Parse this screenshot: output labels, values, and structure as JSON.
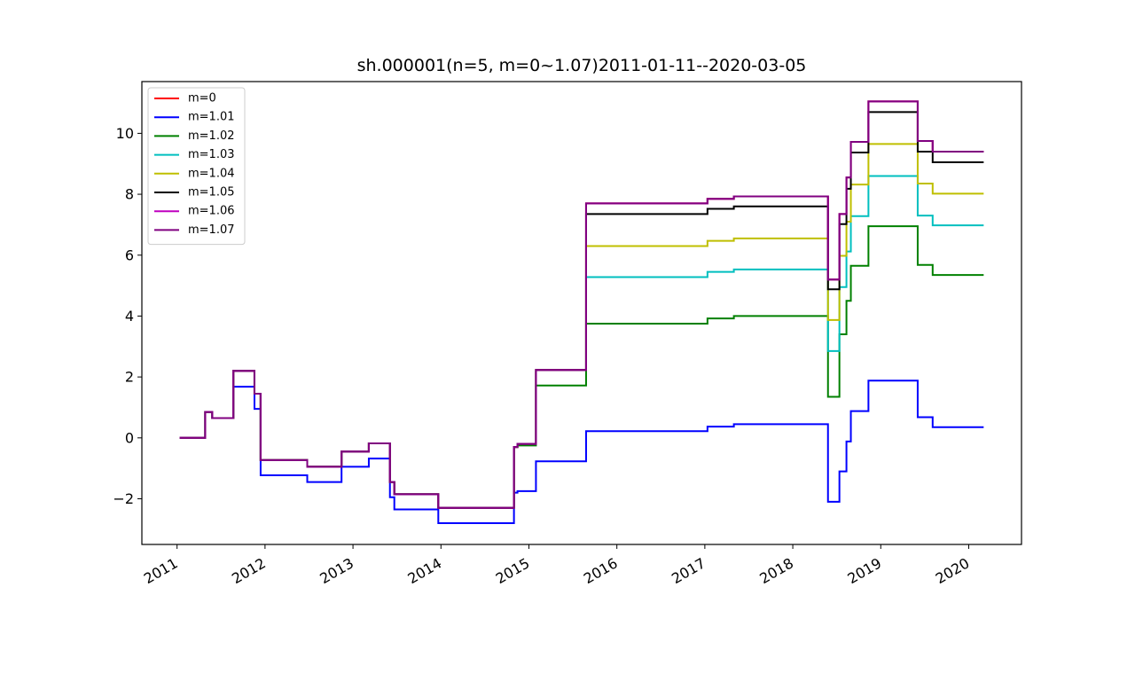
{
  "chart_data": {
    "type": "line",
    "title": "sh.000001(n=5, m=0~1.07)2011-01-11--2020-03-05",
    "xlabel": "",
    "ylabel": "",
    "xlim": [
      2010.6,
      2020.6
    ],
    "ylim": [
      -3.5,
      11.7
    ],
    "x_ticks": [
      2011,
      2012,
      2013,
      2014,
      2015,
      2016,
      2017,
      2018,
      2019,
      2020
    ],
    "x_tick_labels": [
      "2011",
      "2012",
      "2013",
      "2014",
      "2015",
      "2016",
      "2017",
      "2018",
      "2019",
      "2020"
    ],
    "y_ticks": [
      -2,
      0,
      2,
      4,
      6,
      8,
      10
    ],
    "y_tick_labels": [
      "−2",
      "0",
      "2",
      "4",
      "6",
      "8",
      "10"
    ],
    "grid": false,
    "legend_position": "upper-left",
    "steps": [
      {
        "x": 2011.03,
        "values": [
          0,
          0,
          0,
          0,
          0,
          0,
          0,
          0
        ]
      },
      {
        "x": 2011.32,
        "values": [
          0.85,
          0.85,
          0.85,
          0.85,
          0.85,
          0.85,
          0.85,
          0.85
        ]
      },
      {
        "x": 2011.4,
        "values": [
          0.65,
          0.65,
          0.65,
          0.65,
          0.65,
          0.65,
          0.65,
          0.65
        ]
      },
      {
        "x": 2011.64,
        "values": [
          2.2,
          1.68,
          2.2,
          2.2,
          2.2,
          2.2,
          2.2,
          2.2
        ]
      },
      {
        "x": 2011.88,
        "values": [
          1.45,
          0.95,
          1.45,
          1.45,
          1.45,
          1.45,
          1.45,
          1.45
        ]
      },
      {
        "x": 2011.95,
        "values": [
          -0.73,
          -1.23,
          -0.73,
          -0.73,
          -0.73,
          -0.73,
          -0.73,
          -0.73
        ]
      },
      {
        "x": 2012.48,
        "values": [
          -0.95,
          -1.45,
          -0.95,
          -0.95,
          -0.95,
          -0.95,
          -0.95,
          -0.95
        ]
      },
      {
        "x": 2012.87,
        "values": [
          -0.45,
          -0.95,
          -0.45,
          -0.45,
          -0.45,
          -0.45,
          -0.45,
          -0.45
        ]
      },
      {
        "x": 2013.18,
        "values": [
          -0.18,
          -0.68,
          -0.18,
          -0.18,
          -0.18,
          -0.18,
          -0.18,
          -0.18
        ]
      },
      {
        "x": 2013.42,
        "values": [
          -1.45,
          -1.95,
          -1.45,
          -1.45,
          -1.45,
          -1.45,
          -1.45,
          -1.45
        ]
      },
      {
        "x": 2013.47,
        "values": [
          -1.85,
          -2.35,
          -1.85,
          -1.85,
          -1.85,
          -1.85,
          -1.85,
          -1.85
        ]
      },
      {
        "x": 2013.97,
        "values": [
          -2.3,
          -2.8,
          -2.3,
          -2.3,
          -2.3,
          -2.3,
          -2.3,
          -2.3
        ]
      },
      {
        "x": 2014.83,
        "values": [
          -0.3,
          -1.8,
          -0.3,
          -0.3,
          -0.3,
          -0.3,
          -0.3,
          -0.3
        ]
      },
      {
        "x": 2014.87,
        "values": [
          -0.2,
          -1.75,
          -0.25,
          -0.2,
          -0.2,
          -0.2,
          -0.2,
          -0.2
        ]
      },
      {
        "x": 2015.08,
        "values": [
          2.23,
          -0.77,
          1.72,
          2.23,
          2.23,
          2.23,
          2.23,
          2.23
        ]
      },
      {
        "x": 2015.65,
        "values": [
          7.7,
          0.22,
          3.75,
          5.28,
          6.3,
          7.35,
          7.7,
          7.7
        ]
      },
      {
        "x": 2017.03,
        "values": [
          7.85,
          0.37,
          3.92,
          5.45,
          6.47,
          7.52,
          7.85,
          7.85
        ]
      },
      {
        "x": 2017.33,
        "values": [
          7.93,
          0.45,
          4.0,
          5.53,
          6.55,
          7.6,
          7.93,
          7.93
        ]
      },
      {
        "x": 2018.4,
        "values": [
          5.2,
          -2.1,
          1.35,
          2.85,
          3.87,
          4.88,
          5.2,
          5.2
        ]
      },
      {
        "x": 2018.53,
        "values": [
          7.35,
          -1.1,
          3.4,
          4.95,
          5.98,
          7.02,
          7.35,
          7.35
        ]
      },
      {
        "x": 2018.61,
        "values": [
          8.55,
          -0.12,
          4.5,
          6.12,
          7.1,
          8.18,
          8.55,
          8.55
        ]
      },
      {
        "x": 2018.66,
        "values": [
          9.72,
          0.88,
          5.65,
          7.28,
          8.32,
          9.37,
          9.72,
          9.72
        ]
      },
      {
        "x": 2018.86,
        "values": [
          11.05,
          1.88,
          6.95,
          8.6,
          9.65,
          10.7,
          11.05,
          11.05
        ]
      },
      {
        "x": 2019.42,
        "values": [
          9.75,
          0.68,
          5.68,
          7.3,
          8.35,
          9.4,
          9.75,
          9.75
        ]
      },
      {
        "x": 2019.59,
        "values": [
          9.4,
          0.35,
          5.35,
          6.98,
          8.02,
          9.05,
          9.4,
          9.4
        ]
      },
      {
        "x": 2020.17,
        "values": [
          9.4,
          0.35,
          5.35,
          6.98,
          8.02,
          9.05,
          9.4,
          9.4
        ]
      }
    ],
    "series": [
      {
        "name": "m=0",
        "color": "#ff0000"
      },
      {
        "name": "m=1.01",
        "color": "#0000ff"
      },
      {
        "name": "m=1.02",
        "color": "#008000"
      },
      {
        "name": "m=1.03",
        "color": "#00bfbf"
      },
      {
        "name": "m=1.04",
        "color": "#bfbf00"
      },
      {
        "name": "m=1.05",
        "color": "#000000"
      },
      {
        "name": "m=1.06",
        "color": "#bf00bf"
      },
      {
        "name": "m=1.07",
        "color": "#800080"
      }
    ]
  }
}
